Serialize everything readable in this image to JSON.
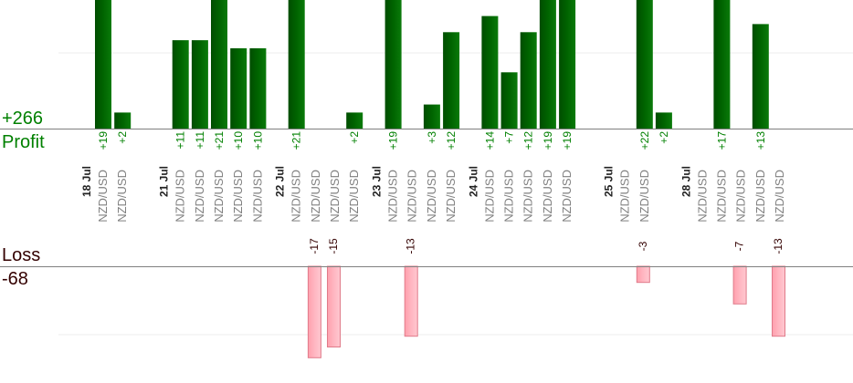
{
  "summary": {
    "profit_total": "+266",
    "profit_label": "Profit",
    "loss_label": "Loss",
    "loss_total": "-68"
  },
  "colors": {
    "profit_bar": "#006400",
    "profit_text": "#008000",
    "loss_bar": "#ffb6c1",
    "loss_bar_border": "#e07b8a",
    "loss_text": "#330000",
    "date_text": "#222222",
    "symbol_text": "#808080"
  },
  "chart_data": {
    "type": "bar",
    "categories": [
      {
        "date": "18 Jul",
        "symbol": "NZD/USD"
      },
      {
        "date": "",
        "symbol": "NZD/USD"
      },
      {
        "date": "",
        "symbol": ""
      },
      {
        "date": "",
        "symbol": ""
      },
      {
        "date": "21 Jul",
        "symbol": "NZD/USD"
      },
      {
        "date": "",
        "symbol": "NZD/USD"
      },
      {
        "date": "",
        "symbol": "NZD/USD"
      },
      {
        "date": "",
        "symbol": "NZD/USD"
      },
      {
        "date": "",
        "symbol": "NZD/USD"
      },
      {
        "date": "",
        "symbol": ""
      },
      {
        "date": "22 Jul",
        "symbol": "NZD/USD"
      },
      {
        "date": "",
        "symbol": "NZD/USD"
      },
      {
        "date": "",
        "symbol": "NZD/USD"
      },
      {
        "date": "",
        "symbol": "NZD/USD"
      },
      {
        "date": "",
        "symbol": ""
      },
      {
        "date": "23 Jul",
        "symbol": "NZD/USD"
      },
      {
        "date": "",
        "symbol": "NZD/USD"
      },
      {
        "date": "",
        "symbol": "NZD/USD"
      },
      {
        "date": "",
        "symbol": "NZD/USD"
      },
      {
        "date": "",
        "symbol": ""
      },
      {
        "date": "24 Jul",
        "symbol": "NZD/USD"
      },
      {
        "date": "",
        "symbol": "NZD/USD"
      },
      {
        "date": "",
        "symbol": "NZD/USD"
      },
      {
        "date": "",
        "symbol": "NZD/USD"
      },
      {
        "date": "",
        "symbol": "NZD/USD"
      },
      {
        "date": "",
        "symbol": ""
      },
      {
        "date": "",
        "symbol": ""
      },
      {
        "date": "25 Jul",
        "symbol": "NZD/USD"
      },
      {
        "date": "",
        "symbol": "NZD/USD"
      },
      {
        "date": "",
        "symbol": ""
      },
      {
        "date": "",
        "symbol": ""
      },
      {
        "date": "28 Jul",
        "symbol": "NZD/USD"
      },
      {
        "date": "",
        "symbol": "NZD/USD"
      },
      {
        "date": "",
        "symbol": "NZD/USD"
      },
      {
        "date": "",
        "symbol": "NZD/USD"
      },
      {
        "date": "",
        "symbol": "NZD/USD"
      }
    ],
    "series": [
      {
        "values": [
          19,
          2,
          null,
          null,
          11,
          11,
          21,
          10,
          10,
          null,
          21,
          null,
          null,
          2,
          null,
          19,
          null,
          3,
          12,
          null,
          14,
          7,
          12,
          19,
          19,
          null,
          null,
          null,
          22,
          2,
          null,
          null,
          17,
          null,
          13,
          null
        ],
        "labels": [
          "+19",
          "+2",
          "",
          "",
          "+11",
          "+11",
          "+21",
          "+10",
          "+10",
          "",
          "+21",
          "",
          "",
          "+2",
          "",
          "+19",
          "",
          "+3",
          "+12",
          "",
          "+14",
          "+7",
          "+12",
          "+19",
          "+19",
          "",
          "",
          "",
          "+22",
          "+2",
          "",
          "",
          "+17",
          "",
          "+13",
          ""
        ]
      },
      {
        "values": [
          null,
          null,
          null,
          null,
          null,
          null,
          null,
          null,
          null,
          null,
          null,
          -17,
          -15,
          null,
          null,
          null,
          -13,
          null,
          null,
          null,
          null,
          null,
          null,
          null,
          null,
          null,
          null,
          null,
          -3,
          null,
          null,
          null,
          null,
          -7,
          null,
          -13
        ],
        "labels": [
          "",
          "",
          "",
          "",
          "",
          "",
          "",
          "",
          "",
          "",
          "",
          "-17",
          "-15",
          "",
          "",
          "",
          "-13",
          "",
          "",
          "",
          "",
          "",
          "",
          "",
          "",
          "",
          "",
          "",
          "-3",
          "",
          "",
          "",
          "",
          "-7",
          "",
          "-13"
        ]
      }
    ],
    "profit_ylim": [
      0,
      16
    ],
    "loss_ylim": [
      -20,
      0
    ],
    "grid": true
  }
}
